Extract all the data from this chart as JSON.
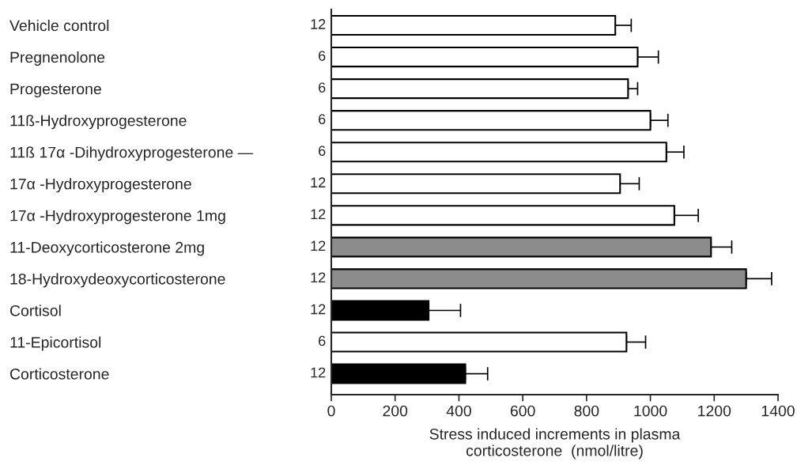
{
  "chart_data": {
    "type": "bar",
    "orientation": "horizontal",
    "categories": [
      "Vehicle control",
      "Pregnenolone",
      "Progesterone",
      "11ß-Hydroxyprogesterone",
      "11ß 17α -Dihydroxyprogesterone —",
      "17α -Hydroxyprogesterone",
      "17α -Hydroxyprogesterone 1mg",
      "11-Deoxycorticosterone 2mg",
      "18-Hydroxydeoxycorticosterone",
      "Cortisol",
      "11-Epicortisol",
      "Corticosterone"
    ],
    "values": [
      890,
      960,
      930,
      1000,
      1050,
      905,
      1075,
      1190,
      1300,
      305,
      925,
      420
    ],
    "errors": [
      [
        890,
        940
      ],
      [
        960,
        1025
      ],
      [
        930,
        960
      ],
      [
        1000,
        1055
      ],
      [
        1050,
        1105
      ],
      [
        905,
        965
      ],
      [
        1075,
        1150
      ],
      [
        1190,
        1255
      ],
      [
        1300,
        1380
      ],
      [
        305,
        405
      ],
      [
        925,
        985
      ],
      [
        420,
        490
      ]
    ],
    "colors": [
      "#ffffff",
      "#ffffff",
      "#ffffff",
      "#ffffff",
      "#ffffff",
      "#ffffff",
      "#ffffff",
      "#8c8c8c",
      "#8c8c8c",
      "#000000",
      "#ffffff",
      "#000000"
    ],
    "xlabel": "Stress induced increments in plasma\ncorticosterone  (nmol/litre)",
    "xlim": [
      0,
      1400
    ],
    "xticks": [
      0,
      200,
      400,
      600,
      800,
      1000,
      1200,
      1400
    ],
    "grid": false,
    "legend": false,
    "annotations": [
      "12",
      "6",
      "6",
      "6",
      "6",
      "12",
      "12",
      "12",
      "12",
      "12",
      "6",
      "12"
    ]
  }
}
